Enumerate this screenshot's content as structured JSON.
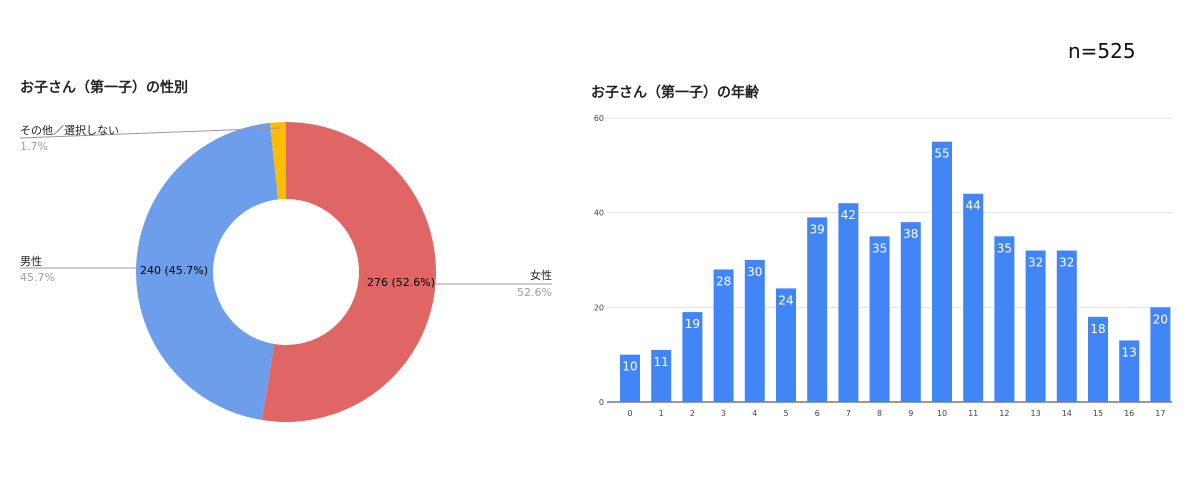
{
  "sample_size_label": "n=525",
  "chart_data": [
    {
      "type": "pie",
      "donut": true,
      "title": "お子さん（第一子）の性別",
      "slices": [
        {
          "label": "女性",
          "value": 276,
          "percent": "52.6%",
          "data_label": "276 (52.6%)",
          "color": "#e06666"
        },
        {
          "label": "男性",
          "value": 240,
          "percent": "45.7%",
          "data_label": "240 (45.7%)",
          "color": "#6d9eeb"
        },
        {
          "label": "その他／選択しない",
          "value": 9,
          "percent": "1.7%",
          "color": "#fbbc04"
        }
      ]
    },
    {
      "type": "bar",
      "title": "お子さん（第一子）の年齢",
      "categories": [
        "0",
        "1",
        "2",
        "3",
        "4",
        "5",
        "6",
        "7",
        "8",
        "9",
        "10",
        "11",
        "12",
        "13",
        "14",
        "15",
        "16",
        "17"
      ],
      "values": [
        10,
        11,
        19,
        28,
        30,
        24,
        39,
        42,
        35,
        38,
        55,
        44,
        35,
        32,
        32,
        18,
        13,
        20
      ],
      "ylim": [
        0,
        60
      ],
      "yticks": [
        "0",
        "20",
        "40",
        "60"
      ],
      "grid": true,
      "color": "#4285f4",
      "xlabel": "",
      "ylabel": ""
    }
  ]
}
